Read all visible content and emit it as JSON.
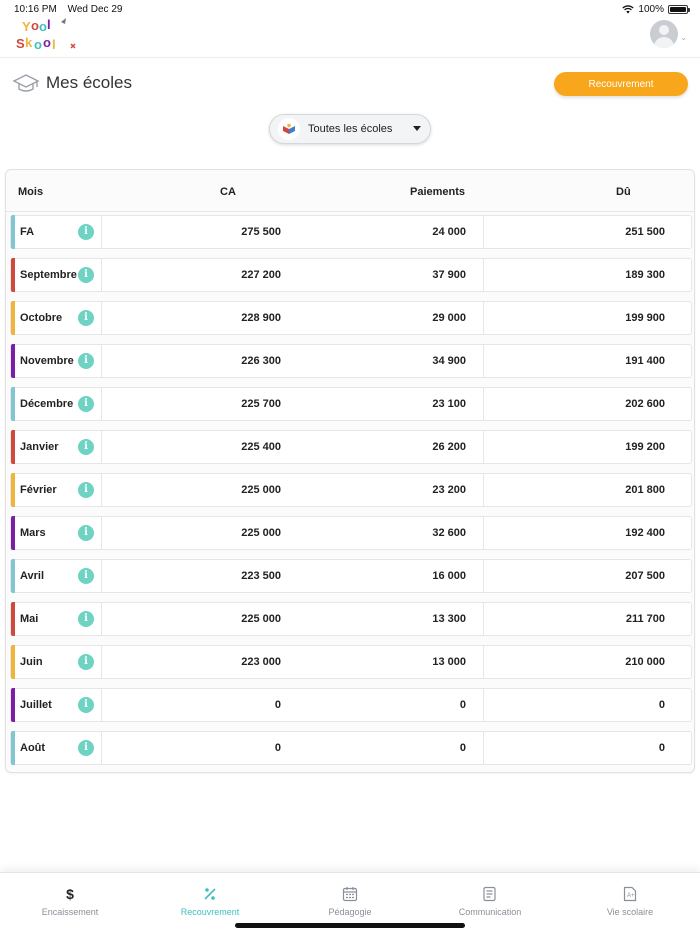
{
  "status_bar": {
    "time": "10:16 PM",
    "date": "Wed Dec 29",
    "battery": "100%"
  },
  "header": {
    "logo_text": "YoolSkool"
  },
  "page": {
    "title": "Mes écoles",
    "recouvrement_button": "Recouvrement"
  },
  "school_select": {
    "selected": "Toutes les écoles"
  },
  "table": {
    "headers": {
      "mois": "Mois",
      "ca": "CA",
      "paiements": "Paiements",
      "du": "Dû"
    },
    "rows": [
      {
        "mois": "FA",
        "ca": "275 500",
        "paiements": "24 000",
        "du": "251 500",
        "color": "#7fc8cf"
      },
      {
        "mois": "Septembre",
        "ca": "227 200",
        "paiements": "37 900",
        "du": "189 300",
        "color": "#cf4a3d"
      },
      {
        "mois": "Octobre",
        "ca": "228 900",
        "paiements": "29 000",
        "du": "199 900",
        "color": "#f0b43c"
      },
      {
        "mois": "Novembre",
        "ca": "226 300",
        "paiements": "34 900",
        "du": "191 400",
        "color": "#7a1fa8"
      },
      {
        "mois": "Décembre",
        "ca": "225 700",
        "paiements": "23 100",
        "du": "202 600",
        "color": "#7fc8cf"
      },
      {
        "mois": "Janvier",
        "ca": "225 400",
        "paiements": "26 200",
        "du": "199 200",
        "color": "#cf4a3d"
      },
      {
        "mois": "Février",
        "ca": "225 000",
        "paiements": "23 200",
        "du": "201 800",
        "color": "#f0b43c"
      },
      {
        "mois": "Mars",
        "ca": "225 000",
        "paiements": "32 600",
        "du": "192 400",
        "color": "#7a1fa8"
      },
      {
        "mois": "Avril",
        "ca": "223 500",
        "paiements": "16 000",
        "du": "207 500",
        "color": "#7fc8cf"
      },
      {
        "mois": "Mai",
        "ca": "225 000",
        "paiements": "13 300",
        "du": "211 700",
        "color": "#cf4a3d"
      },
      {
        "mois": "Juin",
        "ca": "223 000",
        "paiements": "13 000",
        "du": "210 000",
        "color": "#f0b43c"
      },
      {
        "mois": "Juillet",
        "ca": "0",
        "paiements": "0",
        "du": "0",
        "color": "#7a1fa8"
      },
      {
        "mois": "Août",
        "ca": "0",
        "paiements": "0",
        "du": "0",
        "color": "#7fc8cf"
      }
    ]
  },
  "bottom_nav": [
    {
      "label": "Encaissement",
      "icon": "dollar-icon"
    },
    {
      "label": "Recouvrement",
      "icon": "percent-icon",
      "active": true
    },
    {
      "label": "Pédagogie",
      "icon": "calendar-icon"
    },
    {
      "label": "Communication",
      "icon": "document-icon"
    },
    {
      "label": "Vie scolaire",
      "icon": "grade-icon"
    }
  ],
  "colors": {
    "accent_orange": "#f8a61b",
    "accent_teal": "#3fbfbf",
    "info_icon": "#6fd3c4"
  }
}
